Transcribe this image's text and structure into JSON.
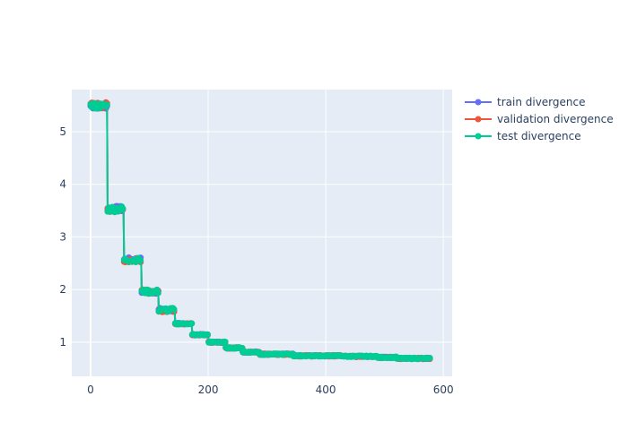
{
  "chart_data": {
    "type": "line",
    "title": "",
    "xlabel": "",
    "ylabel": "",
    "xlim": [
      -32,
      615
    ],
    "ylim": [
      0.35,
      5.8
    ],
    "x_ticks": [
      0,
      200,
      400,
      600
    ],
    "y_ticks": [
      1,
      2,
      3,
      4,
      5
    ],
    "grid": true,
    "legend_position": "right",
    "colors": {
      "plot_bg": "#e5ecf6",
      "grid": "#ffffff",
      "train": "#636efa",
      "validation": "#ef553b",
      "test": "#00cc96"
    },
    "series": [
      {
        "name": "train divergence",
        "color": "#636efa",
        "steps": [
          {
            "x": [
              0,
              28
            ],
            "y": 5.49
          },
          {
            "x": [
              29,
              56
            ],
            "y": 3.53
          },
          {
            "x": [
              57,
              86
            ],
            "y": 2.57
          },
          {
            "x": [
              87,
              115
            ],
            "y": 1.96
          },
          {
            "x": [
              116,
              143
            ],
            "y": 1.61
          },
          {
            "x": [
              144,
              172
            ],
            "y": 1.35
          },
          {
            "x": [
              173,
              200
            ],
            "y": 1.14
          },
          {
            "x": [
              201,
              229
            ],
            "y": 1.0
          },
          {
            "x": [
              230,
              258
            ],
            "y": 0.89
          },
          {
            "x": [
              259,
              287
            ],
            "y": 0.81
          },
          {
            "x": [
              288,
              344
            ],
            "y": 0.77
          },
          {
            "x": [
              345,
              430
            ],
            "y": 0.74
          },
          {
            "x": [
              431,
              487
            ],
            "y": 0.73
          },
          {
            "x": [
              488,
              520
            ],
            "y": 0.71
          },
          {
            "x": [
              521,
              578
            ],
            "y": 0.69
          }
        ]
      },
      {
        "name": "validation divergence",
        "color": "#ef553b",
        "steps": [
          {
            "x": [
              0,
              28
            ],
            "y": 5.5
          },
          {
            "x": [
              29,
              56
            ],
            "y": 3.53
          },
          {
            "x": [
              57,
              86
            ],
            "y": 2.56
          },
          {
            "x": [
              87,
              115
            ],
            "y": 1.96
          },
          {
            "x": [
              116,
              143
            ],
            "y": 1.61
          },
          {
            "x": [
              144,
              172
            ],
            "y": 1.35
          },
          {
            "x": [
              173,
              200
            ],
            "y": 1.14
          },
          {
            "x": [
              201,
              229
            ],
            "y": 1.0
          },
          {
            "x": [
              230,
              258
            ],
            "y": 0.89
          },
          {
            "x": [
              259,
              287
            ],
            "y": 0.81
          },
          {
            "x": [
              288,
              344
            ],
            "y": 0.77
          },
          {
            "x": [
              345,
              430
            ],
            "y": 0.74
          },
          {
            "x": [
              431,
              487
            ],
            "y": 0.73
          },
          {
            "x": [
              488,
              520
            ],
            "y": 0.71
          },
          {
            "x": [
              521,
              578
            ],
            "y": 0.69
          }
        ]
      },
      {
        "name": "test divergence",
        "color": "#00cc96",
        "steps": [
          {
            "x": [
              0,
              28
            ],
            "y": 5.49
          },
          {
            "x": [
              29,
              56
            ],
            "y": 3.53
          },
          {
            "x": [
              57,
              86
            ],
            "y": 2.56
          },
          {
            "x": [
              87,
              115
            ],
            "y": 1.96
          },
          {
            "x": [
              116,
              143
            ],
            "y": 1.61
          },
          {
            "x": [
              144,
              172
            ],
            "y": 1.35
          },
          {
            "x": [
              173,
              200
            ],
            "y": 1.14
          },
          {
            "x": [
              201,
              229
            ],
            "y": 1.0
          },
          {
            "x": [
              230,
              258
            ],
            "y": 0.89
          },
          {
            "x": [
              259,
              287
            ],
            "y": 0.81
          },
          {
            "x": [
              288,
              344
            ],
            "y": 0.77
          },
          {
            "x": [
              345,
              430
            ],
            "y": 0.74
          },
          {
            "x": [
              431,
              487
            ],
            "y": 0.73
          },
          {
            "x": [
              488,
              520
            ],
            "y": 0.71
          },
          {
            "x": [
              521,
              578
            ],
            "y": 0.69
          }
        ]
      }
    ]
  }
}
